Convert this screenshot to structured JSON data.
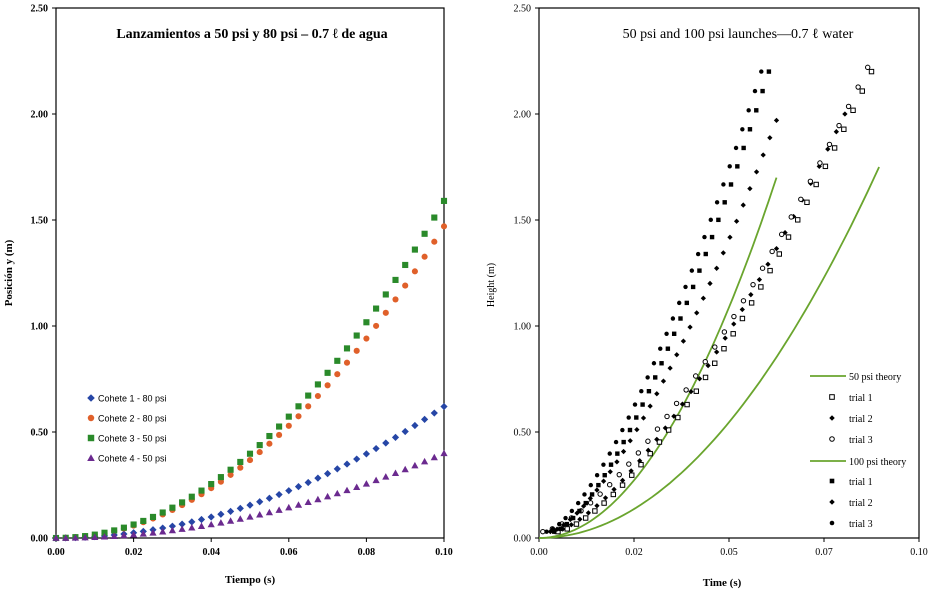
{
  "chart_data": [
    {
      "type": "scatter",
      "title": "Lanzamientos a 50 psi y 80 psi – 0.7 ℓ de agua",
      "xlabel": "Tiempo (s)",
      "ylabel": "Posición y (m)",
      "xlim": [
        0,
        0.1
      ],
      "ylim": [
        0,
        2.5
      ],
      "xticks": [
        "0.00",
        "0.02",
        "0.04",
        "0.06",
        "0.08",
        "0.10"
      ],
      "yticks": [
        "0.00",
        "0.50",
        "1.00",
        "1.50",
        "2.00",
        "2.50"
      ],
      "legend_position": "left-bottom",
      "series": [
        {
          "name": "Cohete 1 - 80 psi",
          "marker": "diamond",
          "color": "#2646a6",
          "coef": 62,
          "tmax": 0.1
        },
        {
          "name": "Cohete 2 - 80 psi",
          "marker": "circle",
          "color": "#e0602a",
          "coef": 147,
          "tmax": 0.1
        },
        {
          "name": "Cohete 3 - 50 psi",
          "marker": "square",
          "color": "#2a8a2a",
          "coef": 159,
          "tmax": 0.1
        },
        {
          "name": "Cohete 4 - 50 psi",
          "marker": "triangle",
          "color": "#6b2a8f",
          "coef": 40,
          "tmax": 0.1
        }
      ]
    },
    {
      "type": "scatter",
      "title": "50 psi and 100 psi launches—0.7 ℓ water",
      "xlabel": "Time (s)",
      "ylabel": "Height (m)",
      "xlim": [
        0,
        0.1
      ],
      "ylim": [
        0,
        2.5
      ],
      "xticks": [
        "0.00",
        "0.02",
        "0.05",
        "0.07",
        "0.10"
      ],
      "yticks": [
        "0.00",
        "0.50",
        "1.00",
        "1.50",
        "2.00",
        "2.50"
      ],
      "legend_position": "right-bottom",
      "legend": {
        "theory_50": "50 psi theory",
        "theory_100": "100 psi theory",
        "trial_1": "trial 1",
        "trial_2": "trial 2",
        "trial_3": "trial 3"
      },
      "theory": [
        {
          "name": "50 psi theory",
          "color": "#6aa52e",
          "t0": 0.0,
          "t1": 0.0895,
          "y1": 1.75
        },
        {
          "name": "100 psi theory",
          "color": "#6aa52e",
          "t0": 0.0,
          "t1": 0.0625,
          "y1": 1.7
        }
      ],
      "trials": [
        {
          "name": "trial 1",
          "group": "50 psi",
          "marker": "open-square",
          "t0": 0.005,
          "t1": 0.0875,
          "y1": 2.2
        },
        {
          "name": "trial 2",
          "group": "50 psi",
          "marker": "diamond",
          "t0": 0.004,
          "t1": 0.0805,
          "y1": 2.0
        },
        {
          "name": "trial 3",
          "group": "50 psi",
          "marker": "open-circle",
          "t0": 0.001,
          "t1": 0.0865,
          "y1": 2.22
        },
        {
          "name": "trial 1",
          "group": "100 psi",
          "marker": "square",
          "t0": 0.004,
          "t1": 0.0605,
          "y1": 2.2
        },
        {
          "name": "trial 2",
          "group": "100 psi",
          "marker": "diamond",
          "t0": 0.003,
          "t1": 0.0625,
          "y1": 1.97
        },
        {
          "name": "trial 3",
          "group": "100 psi",
          "marker": "circle",
          "t0": 0.002,
          "t1": 0.0585,
          "y1": 2.2
        }
      ]
    }
  ]
}
